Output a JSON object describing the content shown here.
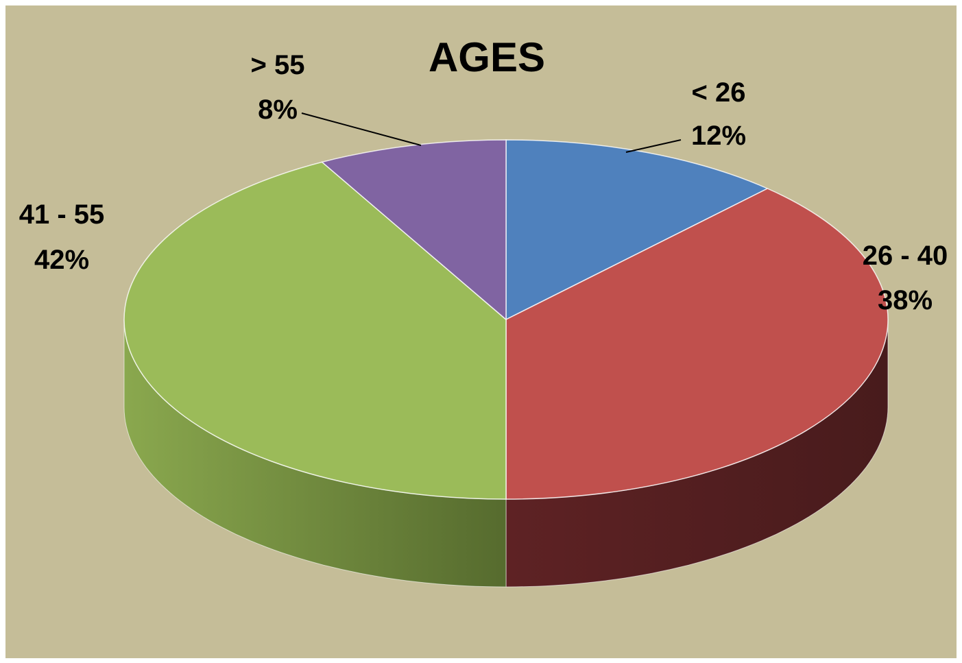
{
  "chart_data": {
    "type": "pie",
    "title": "AGES",
    "style": "3d",
    "slices": [
      {
        "label": "< 26",
        "value": 12,
        "value_label": "12%",
        "color": "#4f81bd",
        "side_color": "#2f4d71"
      },
      {
        "label": "26 - 40",
        "value": 38,
        "value_label": "38%",
        "color": "#c0504d",
        "side_color": "#4a1c1d"
      },
      {
        "label": "41 - 55",
        "value": 42,
        "value_label": "42%",
        "color": "#9bbb59",
        "side_color": "#6f8a3c"
      },
      {
        "label": "> 55",
        "value": 8,
        "value_label": "8%",
        "color": "#8064a2",
        "side_color": "#4f3c66"
      }
    ]
  }
}
